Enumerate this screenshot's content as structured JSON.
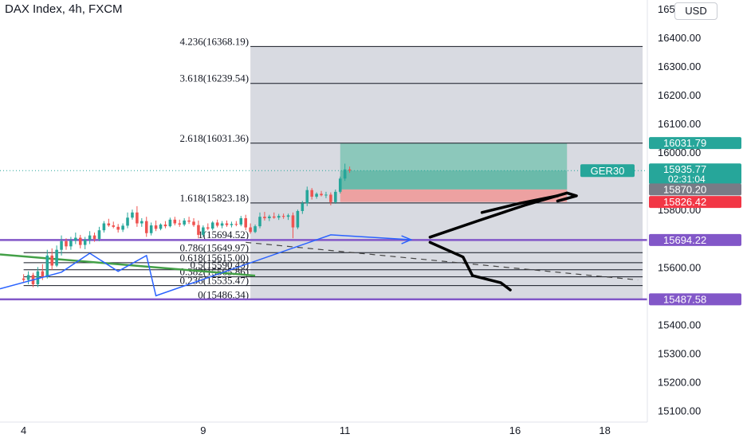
{
  "header": {
    "title": "DAX Index, 4h, FXCM",
    "currency_button": "USD"
  },
  "colors": {
    "bull": "#26a69a",
    "bear": "#ef5350",
    "fib_zone": "#d1d4dc",
    "target_zone": "#7fc4b4",
    "stop_zone": "#ef9a9a",
    "level_purple": "#8257c8",
    "pattern_blue": "#2962ff",
    "trend_green": "#43a047",
    "price_tag": "#26a69a",
    "stop_tag": "#f23645",
    "entry_tag": "#787b86"
  },
  "chart_data": {
    "type": "candlestick",
    "symbol": "DAX Index",
    "interval": "4h",
    "source": "FXCM",
    "ylim": [
      15060,
      16530
    ],
    "y_ticks": [
      15100,
      15200,
      15300,
      15400,
      15500,
      15600,
      15700,
      15800,
      15900,
      16000,
      16100,
      16200,
      16300,
      16400,
      16500
    ],
    "y_tick_labels": [
      "15100.00",
      "15200.00",
      "15300.00",
      "15400.00",
      "",
      "15600.00",
      "",
      "15800.00",
      "",
      "16000.00",
      "16100.00",
      "16200.00",
      "16300.00",
      "16400.00",
      "16500.00"
    ],
    "x_ticks": [
      "4",
      "9",
      "11",
      "16",
      "18"
    ],
    "x_tick_slots": [
      0,
      38,
      68,
      104,
      123
    ],
    "x_range": [
      -5,
      132
    ],
    "candles": [
      {
        "x": 0,
        "o": 15560,
        "h": 15575,
        "l": 15545,
        "c": 15555
      },
      {
        "x": 1,
        "o": 15555,
        "h": 15585,
        "l": 15540,
        "c": 15572
      },
      {
        "x": 2,
        "o": 15572,
        "h": 15580,
        "l": 15530,
        "c": 15540
      },
      {
        "x": 3,
        "o": 15540,
        "h": 15600,
        "l": 15530,
        "c": 15585
      },
      {
        "x": 4,
        "o": 15585,
        "h": 15610,
        "l": 15555,
        "c": 15565
      },
      {
        "x": 5,
        "o": 15565,
        "h": 15660,
        "l": 15560,
        "c": 15640
      },
      {
        "x": 6,
        "o": 15640,
        "h": 15665,
        "l": 15590,
        "c": 15605
      },
      {
        "x": 7,
        "o": 15605,
        "h": 15675,
        "l": 15600,
        "c": 15660
      },
      {
        "x": 8,
        "o": 15660,
        "h": 15710,
        "l": 15640,
        "c": 15690
      },
      {
        "x": 9,
        "o": 15690,
        "h": 15700,
        "l": 15660,
        "c": 15672
      },
      {
        "x": 10,
        "o": 15672,
        "h": 15705,
        "l": 15660,
        "c": 15692
      },
      {
        "x": 11,
        "o": 15692,
        "h": 15720,
        "l": 15680,
        "c": 15702
      },
      {
        "x": 12,
        "o": 15702,
        "h": 15712,
        "l": 15665,
        "c": 15677
      },
      {
        "x": 13,
        "o": 15677,
        "h": 15705,
        "l": 15662,
        "c": 15695
      },
      {
        "x": 14,
        "o": 15695,
        "h": 15725,
        "l": 15680,
        "c": 15710
      },
      {
        "x": 15,
        "o": 15710,
        "h": 15720,
        "l": 15688,
        "c": 15698
      },
      {
        "x": 16,
        "o": 15698,
        "h": 15740,
        "l": 15690,
        "c": 15728
      },
      {
        "x": 17,
        "o": 15728,
        "h": 15760,
        "l": 15720,
        "c": 15752
      },
      {
        "x": 18,
        "o": 15752,
        "h": 15768,
        "l": 15740,
        "c": 15745
      },
      {
        "x": 19,
        "o": 15745,
        "h": 15758,
        "l": 15735,
        "c": 15740
      },
      {
        "x": 20,
        "o": 15740,
        "h": 15750,
        "l": 15720,
        "c": 15730
      },
      {
        "x": 21,
        "o": 15730,
        "h": 15752,
        "l": 15722,
        "c": 15744
      },
      {
        "x": 22,
        "o": 15744,
        "h": 15790,
        "l": 15735,
        "c": 15772
      },
      {
        "x": 23,
        "o": 15772,
        "h": 15800,
        "l": 15765,
        "c": 15790
      },
      {
        "x": 24,
        "o": 15790,
        "h": 15812,
        "l": 15740,
        "c": 15752
      },
      {
        "x": 25,
        "o": 15752,
        "h": 15770,
        "l": 15740,
        "c": 15760
      },
      {
        "x": 26,
        "o": 15760,
        "h": 15775,
        "l": 15705,
        "c": 15718
      },
      {
        "x": 27,
        "o": 15718,
        "h": 15755,
        "l": 15710,
        "c": 15745
      },
      {
        "x": 28,
        "o": 15745,
        "h": 15762,
        "l": 15725,
        "c": 15733
      },
      {
        "x": 29,
        "o": 15733,
        "h": 15752,
        "l": 15728,
        "c": 15748
      },
      {
        "x": 30,
        "o": 15748,
        "h": 15760,
        "l": 15735,
        "c": 15742
      },
      {
        "x": 31,
        "o": 15742,
        "h": 15772,
        "l": 15738,
        "c": 15765
      },
      {
        "x": 32,
        "o": 15765,
        "h": 15775,
        "l": 15745,
        "c": 15752
      },
      {
        "x": 33,
        "o": 15752,
        "h": 15765,
        "l": 15740,
        "c": 15748
      },
      {
        "x": 34,
        "o": 15748,
        "h": 15770,
        "l": 15742,
        "c": 15762
      },
      {
        "x": 35,
        "o": 15762,
        "h": 15775,
        "l": 15750,
        "c": 15758
      },
      {
        "x": 36,
        "o": 15758,
        "h": 15770,
        "l": 15740,
        "c": 15746
      },
      {
        "x": 37,
        "o": 15746,
        "h": 15762,
        "l": 15700,
        "c": 15712
      },
      {
        "x": 38,
        "o": 15712,
        "h": 15745,
        "l": 15705,
        "c": 15738
      },
      {
        "x": 39,
        "o": 15738,
        "h": 15752,
        "l": 15728,
        "c": 15734
      },
      {
        "x": 40,
        "o": 15734,
        "h": 15760,
        "l": 15728,
        "c": 15755
      },
      {
        "x": 41,
        "o": 15755,
        "h": 15765,
        "l": 15738,
        "c": 15744
      },
      {
        "x": 42,
        "o": 15744,
        "h": 15760,
        "l": 15735,
        "c": 15752
      },
      {
        "x": 43,
        "o": 15752,
        "h": 15762,
        "l": 15740,
        "c": 15746
      },
      {
        "x": 44,
        "o": 15746,
        "h": 15758,
        "l": 15738,
        "c": 15750
      },
      {
        "x": 45,
        "o": 15750,
        "h": 15760,
        "l": 15742,
        "c": 15748
      },
      {
        "x": 46,
        "o": 15748,
        "h": 15778,
        "l": 15742,
        "c": 15770
      },
      {
        "x": 47,
        "o": 15770,
        "h": 15782,
        "l": 15728,
        "c": 15738
      },
      {
        "x": 48,
        "o": 15738,
        "h": 15752,
        "l": 15716,
        "c": 15722
      },
      {
        "x": 49,
        "o": 15722,
        "h": 15748,
        "l": 15718,
        "c": 15742
      },
      {
        "x": 50,
        "o": 15742,
        "h": 15790,
        "l": 15735,
        "c": 15775
      },
      {
        "x": 51,
        "o": 15775,
        "h": 15792,
        "l": 15762,
        "c": 15770
      },
      {
        "x": 52,
        "o": 15770,
        "h": 15782,
        "l": 15760,
        "c": 15776
      },
      {
        "x": 53,
        "o": 15776,
        "h": 15790,
        "l": 15768,
        "c": 15772
      },
      {
        "x": 54,
        "o": 15772,
        "h": 15785,
        "l": 15764,
        "c": 15778
      },
      {
        "x": 55,
        "o": 15778,
        "h": 15786,
        "l": 15768,
        "c": 15775
      },
      {
        "x": 56,
        "o": 15775,
        "h": 15786,
        "l": 15764,
        "c": 15780
      },
      {
        "x": 57,
        "o": 15780,
        "h": 15790,
        "l": 15700,
        "c": 15738
      },
      {
        "x": 58,
        "o": 15738,
        "h": 15800,
        "l": 15732,
        "c": 15795
      },
      {
        "x": 59,
        "o": 15795,
        "h": 15830,
        "l": 15785,
        "c": 15822
      },
      {
        "x": 60,
        "o": 15822,
        "h": 15880,
        "l": 15812,
        "c": 15868
      },
      {
        "x": 61,
        "o": 15868,
        "h": 15875,
        "l": 15835,
        "c": 15845
      },
      {
        "x": 62,
        "o": 15845,
        "h": 15860,
        "l": 15838,
        "c": 15855
      },
      {
        "x": 63,
        "o": 15855,
        "h": 15865,
        "l": 15846,
        "c": 15850
      },
      {
        "x": 64,
        "o": 15850,
        "h": 15862,
        "l": 15840,
        "c": 15852
      },
      {
        "x": 65,
        "o": 15852,
        "h": 15860,
        "l": 15815,
        "c": 15826
      },
      {
        "x": 66,
        "o": 15826,
        "h": 15870,
        "l": 15820,
        "c": 15862
      },
      {
        "x": 67,
        "o": 15862,
        "h": 15915,
        "l": 15856,
        "c": 15908
      },
      {
        "x": 68,
        "o": 15908,
        "h": 15960,
        "l": 15900,
        "c": 15940
      },
      {
        "x": 69,
        "o": 15940,
        "h": 15950,
        "l": 15928,
        "c": 15936
      }
    ],
    "fib": {
      "x_start": 0,
      "x_end": 131,
      "zone_x_start": 48,
      "zone_price_top": 16368.19,
      "zone_price_bottom": 15486.34,
      "levels": [
        {
          "ratio": "4.236",
          "price": "16368.19",
          "value": 16368.19,
          "label": "4.236(16368.19)"
        },
        {
          "ratio": "3.618",
          "price": "16239.54",
          "value": 16239.54,
          "label": "3.618(16239.54)"
        },
        {
          "ratio": "2.618",
          "price": "16031.36",
          "value": 16031.36,
          "label": "2.618(16031.36)"
        },
        {
          "ratio": "1.618",
          "price": "15823.18",
          "value": 15823.18,
          "label": "1.618(15823.18)"
        },
        {
          "ratio": "1",
          "price": "15694.52",
          "value": 15694.52,
          "label": "1(15694.52)"
        },
        {
          "ratio": "0.786",
          "price": "15649.97",
          "value": 15649.97,
          "label": "0.786(15649.97)"
        },
        {
          "ratio": "0.618",
          "price": "15615.00",
          "value": 15615.0,
          "label": "0.618(15615.00)"
        },
        {
          "ratio": "0.5",
          "price": "15590.43",
          "value": 15590.43,
          "label": "0.5(15590.43)"
        },
        {
          "ratio": "0.382",
          "price": "15565.86",
          "value": 15565.86,
          "label": "0.382(15565.86)"
        },
        {
          "ratio": "0.236",
          "price": "15535.47",
          "value": 15535.47,
          "label": "0.236(15535.47)"
        },
        {
          "ratio": "0",
          "price": "15486.34",
          "value": 15486.34,
          "label": "0(15486.34)"
        }
      ]
    },
    "horizontal_lines": [
      {
        "price": 15694.22,
        "color": "#8257c8"
      },
      {
        "price": 15487.58,
        "color": "#8257c8"
      }
    ],
    "position": {
      "x_start": 67,
      "x_end": 115,
      "entry": 15870.2,
      "target": 16031.79,
      "stop": 15826.42,
      "current": 15935.77
    },
    "trend_line": {
      "x1": -5,
      "y1": 15644,
      "x2": 49,
      "y2": 15570,
      "color": "#43a047"
    },
    "dashed_line": {
      "x1": 47,
      "y1": 15686,
      "x2": 130,
      "y2": 15555
    },
    "blue_path": [
      [
        -5,
        15524
      ],
      [
        8,
        15582
      ],
      [
        14,
        15648
      ],
      [
        20,
        15585
      ],
      [
        26,
        15640
      ],
      [
        28,
        15500
      ],
      [
        65,
        15712
      ],
      [
        82,
        15695
      ]
    ],
    "freehand_strokes": [
      [
        [
          86,
          15704
        ],
        [
          96,
          15760
        ],
        [
          106,
          15815
        ],
        [
          115,
          15858
        ],
        [
          117,
          15848
        ],
        [
          113,
          15830
        ]
      ],
      [
        [
          97,
          15790
        ],
        [
          105,
          15822
        ],
        [
          113,
          15848
        ]
      ],
      [
        [
          86,
          15686
        ],
        [
          93,
          15635
        ],
        [
          95,
          15570
        ],
        [
          101,
          15545
        ],
        [
          103,
          15520
        ]
      ]
    ],
    "price_tags": [
      {
        "label": "15694.22",
        "value": 15694.22,
        "color": "#8257c8"
      },
      {
        "label": "15487.58",
        "value": 15487.58,
        "color": "#8257c8"
      },
      {
        "label": "16031.79",
        "value": 16031.79,
        "color": "#26a69a"
      },
      {
        "label": "15935.77",
        "value": 15935.77,
        "color": "#26a69a",
        "sub": "02:31:04",
        "symbol": "GER30"
      },
      {
        "label": "15870.20",
        "value": 15870.2,
        "color": "#787b86"
      },
      {
        "label": "15826.42",
        "value": 15826.42,
        "color": "#f23645"
      }
    ]
  }
}
